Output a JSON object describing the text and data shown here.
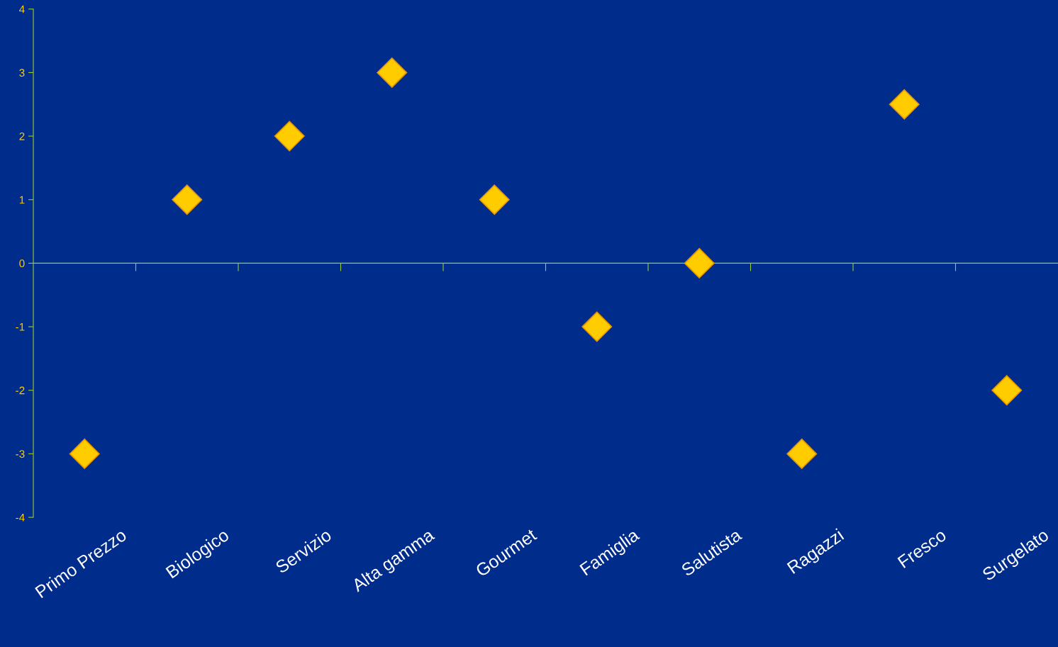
{
  "chart_data": {
    "type": "scatter",
    "categories": [
      "Primo Prezzo",
      "Biologico",
      "Servizio",
      "Alta gamma",
      "Gourmet",
      "Famiglia",
      "Salutista",
      "Ragazzi",
      "Fresco",
      "Surgelato"
    ],
    "values": [
      -3,
      1,
      2,
      3,
      1,
      -1,
      0,
      -3,
      2.5,
      -2
    ],
    "color": "#ffcc00",
    "marker": "diamond",
    "ylim": [
      -4,
      4
    ],
    "yticks": [
      -4,
      -3,
      -2,
      -1,
      0,
      1,
      2,
      3,
      4
    ],
    "grid": false,
    "ref_lines": [
      {
        "axis": "y",
        "value": 0,
        "label": null,
        "color": "#99cc33"
      }
    ]
  }
}
